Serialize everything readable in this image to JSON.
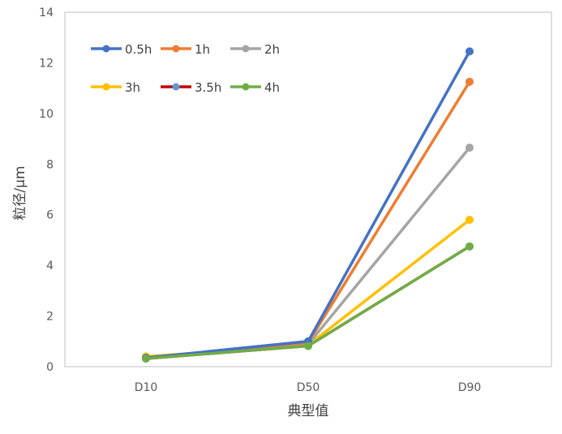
{
  "chart_data": {
    "type": "line",
    "title": "",
    "xlabel": "典型值",
    "ylabel": "粒径/μm",
    "categories": [
      "D10",
      "D50",
      "D90"
    ],
    "ylim": [
      0,
      14
    ],
    "yticks": [
      0,
      2,
      4,
      6,
      8,
      10,
      12,
      14
    ],
    "grid": false,
    "legend_position": "top-left",
    "series": [
      {
        "name": "0.5h",
        "color": "#4472C4",
        "values": [
          0.35,
          1.0,
          12.45
        ]
      },
      {
        "name": "1h",
        "color": "#ED7D31",
        "values": [
          0.35,
          0.95,
          11.25
        ]
      },
      {
        "name": "2h",
        "color": "#A5A5A5",
        "values": [
          0.34,
          0.88,
          8.65
        ]
      },
      {
        "name": "3h",
        "color": "#FFC000",
        "values": [
          0.4,
          0.85,
          5.8
        ]
      },
      {
        "name": "3.5h",
        "color": "#C00000",
        "marker_color": "#5B9BD5",
        "values": [
          0.32,
          0.82,
          4.75
        ]
      },
      {
        "name": "4h",
        "color": "#70AD47",
        "values": [
          0.32,
          0.82,
          4.75
        ]
      }
    ]
  }
}
